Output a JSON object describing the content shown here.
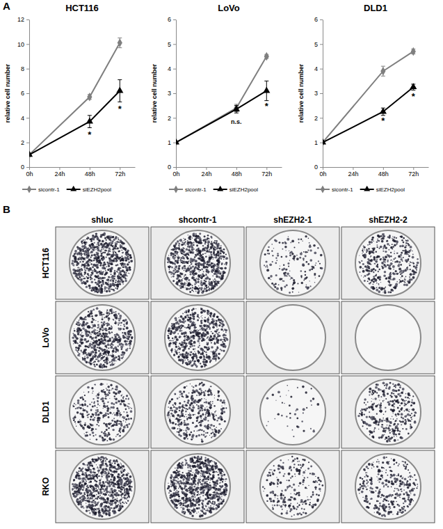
{
  "panel_labels": [
    "A",
    "B"
  ],
  "chart_data": [
    {
      "type": "line",
      "title": "HCT116",
      "y_label": "relative cell number",
      "x": [
        0,
        48,
        72
      ],
      "xlim": [
        0,
        84
      ],
      "xticks": [
        {
          "value": 0,
          "label": "0h"
        },
        {
          "value": 24,
          "label": "24h"
        },
        {
          "value": 48,
          "label": "48h"
        },
        {
          "value": 72,
          "label": "72h"
        }
      ],
      "ylim": [
        0,
        12
      ],
      "yticks": [
        0,
        2,
        4,
        6,
        8,
        10,
        12
      ],
      "legend": "bottom",
      "series": [
        {
          "name": "sicontr-1",
          "color": "#7f7f7f",
          "marker": "diamond",
          "values": [
            1,
            5.7,
            10.1
          ],
          "errors": [
            0,
            0.2,
            0.4
          ]
        },
        {
          "name": "siEZH2pool",
          "color": "#000000",
          "marker": "triangle",
          "values": [
            1,
            3.7,
            6.2
          ],
          "errors": [
            0,
            0.5,
            0.9
          ]
        }
      ],
      "annotations": [
        {
          "text": "*",
          "x": 48,
          "y": 2.4
        },
        {
          "text": "*",
          "x": 72,
          "y": 4.5
        }
      ]
    },
    {
      "type": "line",
      "title": "LoVo",
      "y_label": "relative cell number",
      "x": [
        0,
        48,
        72
      ],
      "xlim": [
        0,
        84
      ],
      "xticks": [
        {
          "value": 0,
          "label": "0h"
        },
        {
          "value": 24,
          "label": "24h"
        },
        {
          "value": 48,
          "label": "48h"
        },
        {
          "value": 72,
          "label": "72h"
        }
      ],
      "ylim": [
        0,
        6
      ],
      "yticks": [
        0,
        1,
        2,
        3,
        4,
        5,
        6
      ],
      "legend": "bottom",
      "series": [
        {
          "name": "sicontr-1",
          "color": "#7f7f7f",
          "marker": "diamond",
          "values": [
            1,
            2.4,
            4.5
          ],
          "errors": [
            0,
            0.15,
            0.08
          ]
        },
        {
          "name": "siEZH2pool",
          "color": "#000000",
          "marker": "triangle",
          "values": [
            1,
            2.35,
            3.1
          ],
          "errors": [
            0,
            0.15,
            0.4
          ]
        }
      ],
      "annotations": [
        {
          "text": "n.s.",
          "x": 48,
          "y": 1.75
        },
        {
          "text": "*",
          "x": 72,
          "y": 2.35
        }
      ]
    },
    {
      "type": "line",
      "title": "DLD1",
      "y_label": "relative cell number",
      "x": [
        0,
        48,
        72
      ],
      "xlim": [
        0,
        84
      ],
      "xticks": [
        {
          "value": 0,
          "label": "0h"
        },
        {
          "value": 24,
          "label": "24h"
        },
        {
          "value": 48,
          "label": "48h"
        },
        {
          "value": 72,
          "label": "72h"
        }
      ],
      "ylim": [
        0,
        6
      ],
      "yticks": [
        0,
        1,
        2,
        3,
        4,
        5,
        6
      ],
      "legend": "bottom",
      "series": [
        {
          "name": "sicontr-1",
          "color": "#7f7f7f",
          "marker": "diamond",
          "values": [
            1,
            3.9,
            4.7
          ],
          "errors": [
            0,
            0.2,
            0.1
          ]
        },
        {
          "name": "siEZH2pool",
          "color": "#000000",
          "marker": "triangle",
          "values": [
            1,
            2.25,
            3.25
          ],
          "errors": [
            0,
            0.15,
            0.12
          ]
        }
      ],
      "annotations": [
        {
          "text": "*",
          "x": 48,
          "y": 1.75
        },
        {
          "text": "*",
          "x": 72,
          "y": 2.75
        }
      ]
    }
  ],
  "colony_assay": {
    "columns": [
      "shluc",
      "shcontr-1",
      "shEZH2-1",
      "shEZH2-2"
    ],
    "rows": [
      "HCT116",
      "LoVo",
      "DLD1",
      "RKO"
    ]
  }
}
